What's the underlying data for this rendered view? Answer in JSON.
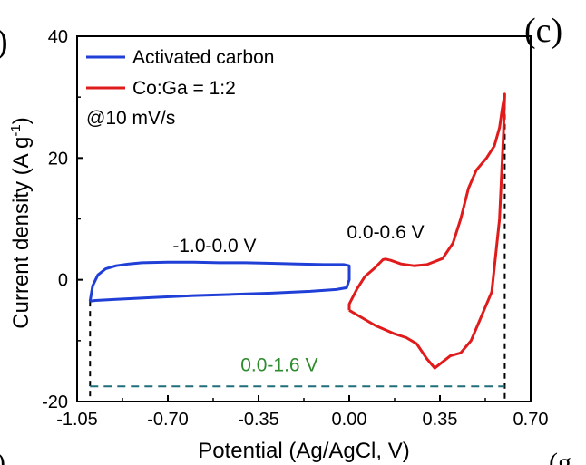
{
  "panel_labels": {
    "left_fragment": ")",
    "right": "(c)",
    "bottom_left_fragment": ")",
    "bottom_right_fragment": "(g"
  },
  "chart_data": {
    "type": "line",
    "xlabel": "Potential (Ag/AgCl, V)",
    "ylabel": "Current density (A g-1)",
    "xlim": [
      -1.05,
      0.7
    ],
    "ylim": [
      -20,
      40
    ],
    "x_ticks": [
      "-1.05",
      "-0.70",
      "-0.35",
      "0.00",
      "0.35",
      "0.70"
    ],
    "y_ticks": [
      "-20",
      "0",
      "20",
      "40"
    ],
    "grid": false,
    "legend_position": "top-left",
    "legend_note": "@10 mV/s",
    "colors": {
      "activated_carbon": "#1f3fd6",
      "co_ga": "#e01b1b",
      "window": "#1f6e7a",
      "window_label": "#2e8b2e",
      "axis": "#000000"
    },
    "series": [
      {
        "name": "Activated carbon",
        "color": "#1f3fd6",
        "x": [
          -1.0,
          -0.99,
          -0.97,
          -0.94,
          -0.9,
          -0.85,
          -0.8,
          -0.7,
          -0.6,
          -0.5,
          -0.4,
          -0.3,
          -0.2,
          -0.1,
          -0.02,
          0.0,
          0.0,
          -0.01,
          -0.05,
          -0.15,
          -0.3,
          -0.45,
          -0.6,
          -0.75,
          -0.9,
          -0.98,
          -1.0
        ],
        "y": [
          -3.5,
          -1.0,
          0.8,
          1.8,
          2.3,
          2.6,
          2.8,
          2.9,
          2.9,
          2.8,
          2.8,
          2.7,
          2.6,
          2.5,
          2.5,
          2.3,
          0.0,
          -1.3,
          -1.6,
          -1.9,
          -2.2,
          -2.4,
          -2.6,
          -2.9,
          -3.2,
          -3.4,
          -3.5
        ]
      },
      {
        "name": "Co:Ga = 1:2",
        "color": "#e01b1b",
        "x": [
          0.0,
          0.0,
          0.03,
          0.06,
          0.1,
          0.13,
          0.14,
          0.16,
          0.2,
          0.25,
          0.3,
          0.36,
          0.4,
          0.43,
          0.46,
          0.49,
          0.53,
          0.56,
          0.58,
          0.59,
          0.6,
          0.595,
          0.58,
          0.55,
          0.51,
          0.47,
          0.43,
          0.39,
          0.36,
          0.33,
          0.3,
          0.26,
          0.22,
          0.17,
          0.1,
          0.04,
          0.0
        ],
        "y": [
          -5.0,
          -4.0,
          -1.5,
          0.5,
          2.0,
          3.3,
          3.4,
          3.2,
          2.6,
          2.3,
          2.5,
          3.5,
          6.0,
          10.0,
          15.0,
          18.0,
          20.0,
          22.0,
          25.0,
          28.0,
          30.5,
          24.0,
          10.0,
          -2.0,
          -6.0,
          -10.0,
          -12.0,
          -12.5,
          -13.5,
          -14.5,
          -13.0,
          -10.5,
          -9.5,
          -8.8,
          -7.5,
          -6.0,
          -5.0
        ]
      }
    ],
    "annotations": [
      {
        "text": "-1.0-0.0 V",
        "x": -0.52,
        "y": 4.6,
        "color": "#000000"
      },
      {
        "text": "0.0-0.6 V",
        "x": 0.14,
        "y": 6.8,
        "color": "#000000"
      },
      {
        "text": "0.0-1.6 V",
        "x": -0.27,
        "y": -15.0,
        "color": "#2e8b2e"
      }
    ],
    "guides": {
      "vertical_left_x": -1.0,
      "vertical_right_x": 0.6,
      "horizontal_y": -17.5,
      "left_top_y": -3.5,
      "right_top_y": 30.5
    }
  }
}
